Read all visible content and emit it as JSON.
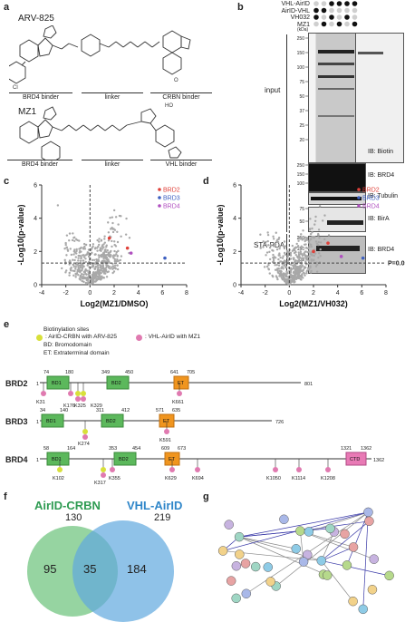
{
  "panels": {
    "a": {
      "label": "a",
      "arv": {
        "title": "ARV-825",
        "parts": [
          "BRD4 binder",
          "linker",
          "CRBN binder"
        ]
      },
      "mz1": {
        "title": "MZ1",
        "parts": [
          "BRD4 binder",
          "linker",
          "VHL binder"
        ]
      }
    },
    "b": {
      "label": "b",
      "conditions": [
        "VHL-AirID",
        "AirID-VHL",
        "VH032",
        "MZ1"
      ],
      "kda_unit": "(kDa)",
      "mw_top": [
        "250",
        "150",
        "100",
        "75",
        "50",
        "37",
        "25",
        "20"
      ],
      "mw_brd4": [
        "250",
        "150",
        "100"
      ],
      "mw_birA": [
        "75",
        "50"
      ],
      "mw_pda": [
        "250",
        "150",
        "100"
      ],
      "section_input": "input",
      "section_pda": "STA-PDA",
      "ib": [
        "IB: Biotin",
        "IB: BRD4",
        "IB: Tubulin",
        "IB: BirA",
        "IB: BRD4"
      ]
    },
    "c": {
      "label": "c"
    },
    "d": {
      "label": "d",
      "threshold": "P=0.05"
    },
    "e": {
      "label": "e",
      "legend_title": "Biotinylation sites",
      "legend_crbn": ": AirID-CRBN with ARV-825",
      "legend_vhl": ": VHL-AirID with MZ1",
      "legend_bd": "BD: Bromodomain",
      "legend_et": "ET: Extraterminal domain",
      "brd2": {
        "name": "BRD2",
        "start": "1",
        "end": "801",
        "bd1": "BD1",
        "bd2": "BD2",
        "et": "ET",
        "nums": [
          "74",
          "180",
          "349",
          "450",
          "641",
          "705"
        ],
        "sites": [
          "K31",
          "K176",
          "K325",
          "K329",
          "K661"
        ]
      },
      "brd3": {
        "name": "BRD3",
        "start": "1",
        "end": "726",
        "bd1": "BD1",
        "bd2": "BD2",
        "et": "ET",
        "nums": [
          "34",
          "140",
          "311",
          "412",
          "571",
          "635"
        ],
        "sites": [
          "K274",
          "K591"
        ]
      },
      "brd4": {
        "name": "BRD4",
        "start": "1",
        "end": "1362",
        "bd1": "BD1",
        "bd2": "BD2",
        "et": "ET",
        "ctd": "CTD",
        "nums": [
          "58",
          "164",
          "353",
          "454",
          "609",
          "673",
          "1321",
          "1362"
        ],
        "sites": [
          "K102",
          "K317",
          "K355",
          "K629",
          "K694",
          "K1050",
          "K1114",
          "K1208"
        ]
      }
    },
    "f": {
      "label": "f",
      "set1": "AirID-CRBN",
      "set1_total": "130",
      "set2": "VHL-AirID",
      "set2_total": "219",
      "only1": "95",
      "both": "35",
      "only2": "184",
      "color1": "#7cc98a",
      "color2": "#5fa8de"
    },
    "g": {
      "label": "g"
    }
  },
  "chart_data": [
    {
      "type": "scatter",
      "panel": "c",
      "xlabel": "Log2(MZ1/DMSO)",
      "ylabel": "-Log10(p-value)",
      "xlim": [
        -4,
        8
      ],
      "ylim": [
        0,
        6
      ],
      "xticks": [
        "-4",
        "-2",
        "0",
        "2",
        "4",
        "6",
        "8"
      ],
      "yticks": [
        "0",
        "2",
        "4",
        "6"
      ],
      "threshold_y": 1.3,
      "series": [
        {
          "name": "BRD2",
          "color": "#e0413a",
          "points": [
            [
              1.6,
              2.8
            ],
            [
              3.1,
              2.2
            ]
          ]
        },
        {
          "name": "BRD3",
          "color": "#3d5fc0",
          "points": [
            [
              6.2,
              1.6
            ]
          ]
        },
        {
          "name": "BRD4",
          "color": "#b04fc0",
          "points": [
            [
              3.4,
              1.9
            ]
          ]
        }
      ]
    },
    {
      "type": "scatter",
      "panel": "d",
      "xlabel": "Log2(MZ1/VH032)",
      "ylabel": "-Log10(p-value)",
      "xlim": [
        -4,
        8
      ],
      "ylim": [
        0,
        6
      ],
      "xticks": [
        "-4",
        "-2",
        "0",
        "2",
        "4",
        "6",
        "8"
      ],
      "yticks": [
        "0",
        "2",
        "4",
        "6"
      ],
      "threshold_y": 1.3,
      "series": [
        {
          "name": "BRD2",
          "color": "#e0413a",
          "points": [
            [
              3.2,
              2.5
            ],
            [
              2.0,
              2.0
            ]
          ]
        },
        {
          "name": "BRD3",
          "color": "#3d5fc0",
          "points": [
            [
              6.1,
              1.6
            ]
          ]
        },
        {
          "name": "BRD4",
          "color": "#b04fc0",
          "points": [
            [
              4.3,
              1.7
            ]
          ]
        }
      ]
    }
  ]
}
